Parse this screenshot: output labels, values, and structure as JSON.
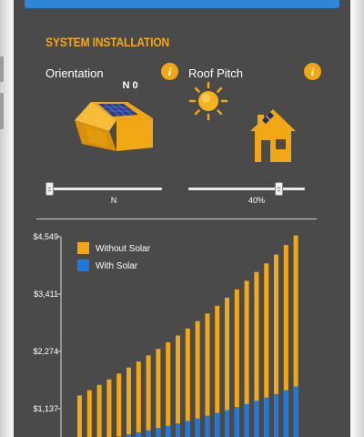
{
  "section": {
    "title": "SYSTEM INSTALLATION"
  },
  "orientation": {
    "label": "Orientation",
    "info_icon": "i",
    "compass_value": "N 0",
    "slider_value": "N",
    "slider_fraction": 0.0
  },
  "roof_pitch": {
    "label": "Roof Pitch",
    "info_icon": "i",
    "slider_value": "40%",
    "slider_fraction": 0.8
  },
  "colors": {
    "accent": "#f2a814",
    "blue": "#1f78e0",
    "screen_bg": "#4a4a4a",
    "top_bar": "#2f86d9"
  },
  "chart_data": {
    "type": "bar",
    "stacked": false,
    "y_ticks": [
      "$4,549",
      "$3,411",
      "$2,274",
      "$1,137"
    ],
    "y_tick_values": [
      4549,
      3411,
      2274,
      1137
    ],
    "ylim": [
      0,
      4549
    ],
    "legend_position": "top-left",
    "series": [
      {
        "name": "Without Solar",
        "color": "#f2a814",
        "values": [
          1400,
          1505,
          1610,
          1720,
          1835,
          1955,
          2075,
          2195,
          2325,
          2455,
          2590,
          2730,
          2875,
          3025,
          3180,
          3340,
          3505,
          3675,
          3850,
          4020,
          4195,
          4385,
          4575
        ]
      },
      {
        "name": "With Solar",
        "color": "#1f78e0",
        "values": [
          445,
          480,
          515,
          555,
          590,
          630,
          670,
          710,
          755,
          800,
          845,
          895,
          945,
          1000,
          1055,
          1110,
          1170,
          1230,
          1295,
          1360,
          1430,
          1505,
          1580
        ]
      }
    ]
  }
}
